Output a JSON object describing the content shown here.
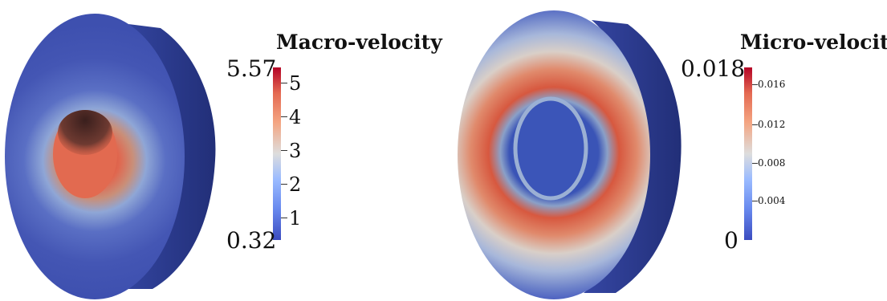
{
  "left": {
    "colorbar": {
      "title": "Macro-velocity",
      "max_label": "5.57",
      "min_label": "0.32",
      "tick_labels": [
        "5",
        "4",
        "3",
        "2",
        "1"
      ],
      "range": [
        0.32,
        5.57
      ]
    },
    "colors": {
      "shell": "#3f51b5",
      "core": "#e4634a",
      "core_dark": "#5a2d2a"
    }
  },
  "right": {
    "colorbar": {
      "title": "Micro-velocity",
      "max_label": "0.018",
      "min_label": "0",
      "tick_labels": [
        "0.016",
        "0.012",
        "0.008",
        "0.004"
      ],
      "range": [
        0,
        0.018
      ]
    },
    "colors": {
      "shell": "#3f51b5",
      "ring": "#d9573f",
      "core": "#3b55b8"
    }
  }
}
